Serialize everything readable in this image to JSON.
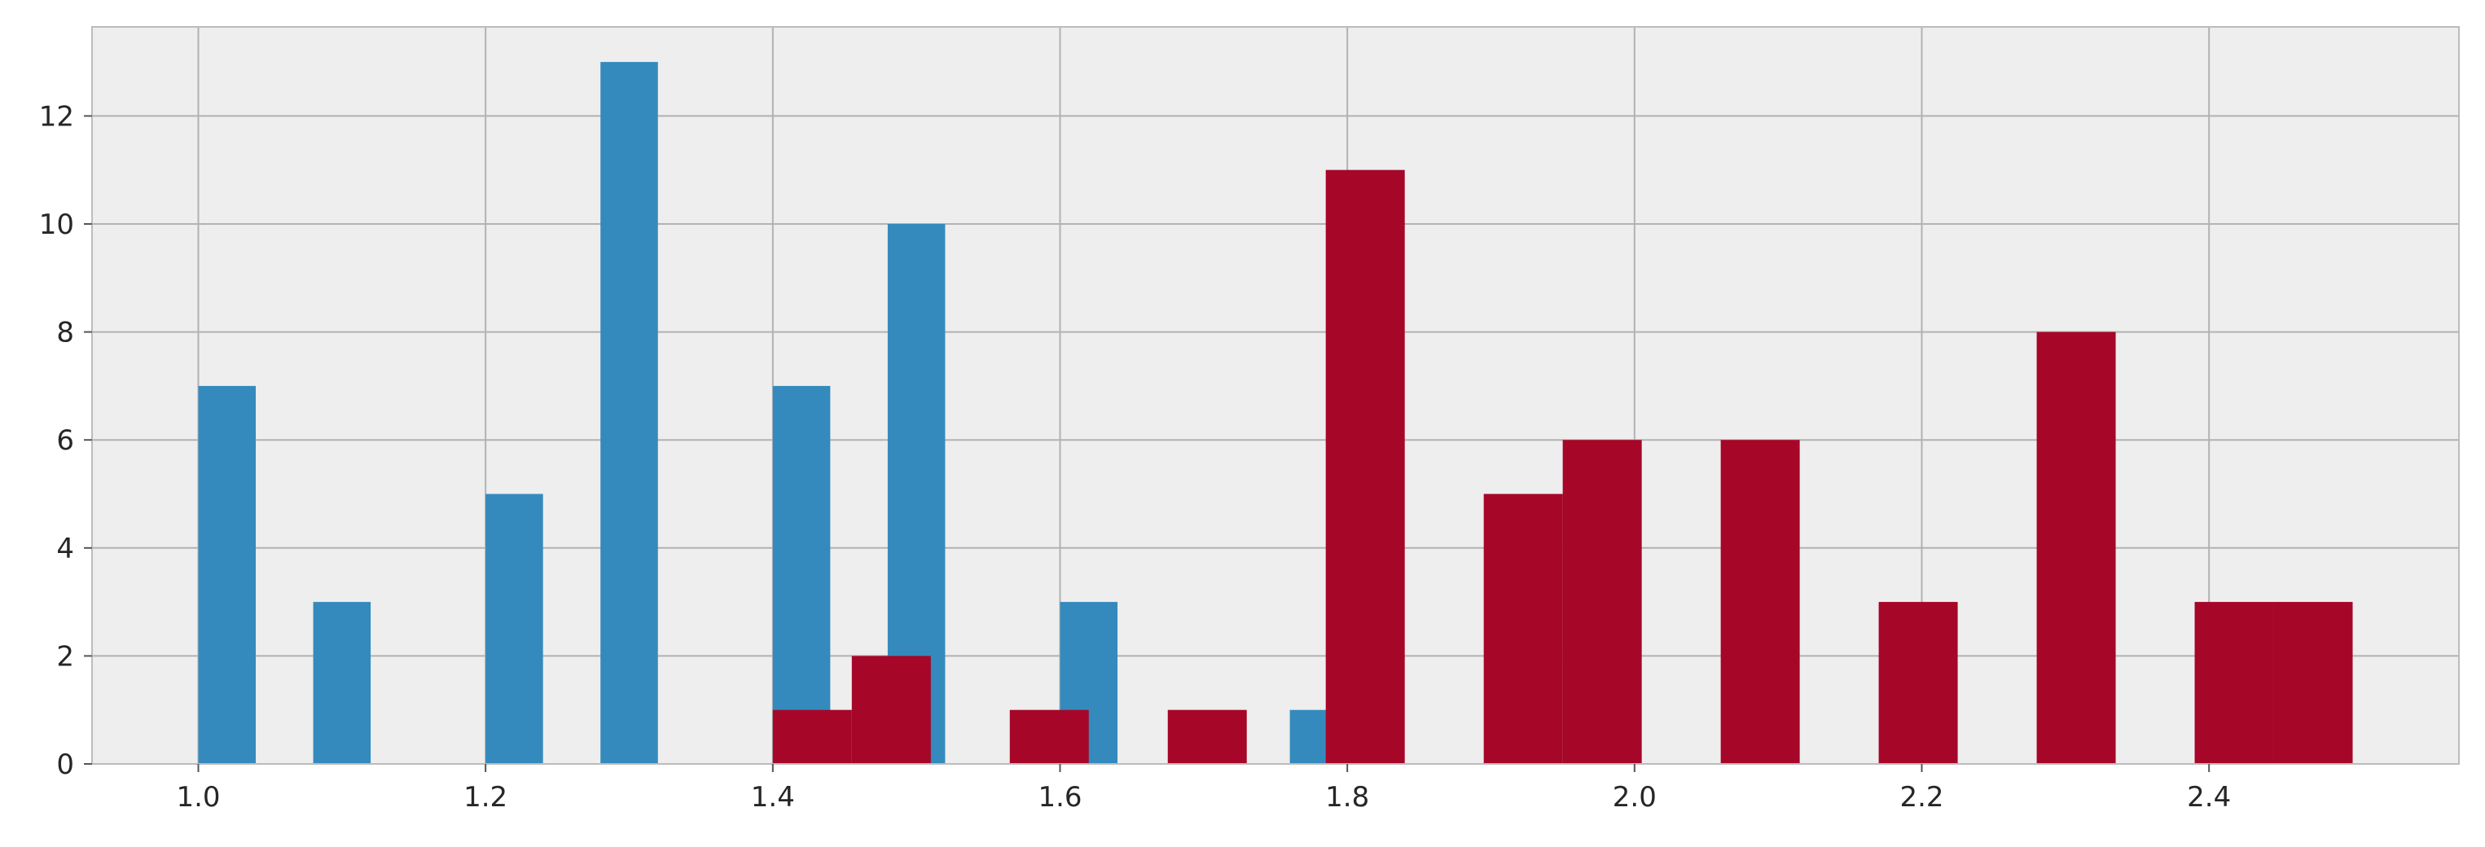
{
  "chart_data": {
    "type": "bar",
    "title": "",
    "xlabel": "",
    "ylabel": "",
    "xlim": [
      0.926,
      2.574
    ],
    "ylim": [
      0,
      13.65
    ],
    "grid": true,
    "x_ticks": [
      1.0,
      1.2,
      1.4,
      1.6,
      1.8,
      2.0,
      2.2,
      2.4
    ],
    "x_tick_labels": [
      "1.0",
      "1.2",
      "1.4",
      "1.6",
      "1.8",
      "2.0",
      "2.2",
      "2.4"
    ],
    "y_ticks": [
      0,
      2,
      4,
      6,
      8,
      10,
      12
    ],
    "y_tick_labels": [
      "0",
      "2",
      "4",
      "6",
      "8",
      "10",
      "12"
    ],
    "series": [
      {
        "color": "#348ABD",
        "bins": [
          {
            "x0": 1.0,
            "x1": 1.04,
            "count": 7
          },
          {
            "x0": 1.08,
            "x1": 1.12,
            "count": 3
          },
          {
            "x0": 1.2,
            "x1": 1.24,
            "count": 5
          },
          {
            "x0": 1.28,
            "x1": 1.32,
            "count": 13
          },
          {
            "x0": 1.4,
            "x1": 1.44,
            "count": 7
          },
          {
            "x0": 1.48,
            "x1": 1.52,
            "count": 10
          },
          {
            "x0": 1.6,
            "x1": 1.64,
            "count": 3
          },
          {
            "x0": 1.76,
            "x1": 1.8,
            "count": 1
          }
        ]
      },
      {
        "color": "#A60628",
        "bins": [
          {
            "x0": 1.4,
            "x1": 1.455,
            "count": 1
          },
          {
            "x0": 1.455,
            "x1": 1.51,
            "count": 2
          },
          {
            "x0": 1.565,
            "x1": 1.62,
            "count": 1
          },
          {
            "x0": 1.675,
            "x1": 1.73,
            "count": 1
          },
          {
            "x0": 1.785,
            "x1": 1.84,
            "count": 11
          },
          {
            "x0": 1.895,
            "x1": 1.95,
            "count": 5
          },
          {
            "x0": 1.95,
            "x1": 2.005,
            "count": 6
          },
          {
            "x0": 2.06,
            "x1": 2.115,
            "count": 6
          },
          {
            "x0": 2.17,
            "x1": 2.225,
            "count": 3
          },
          {
            "x0": 2.28,
            "x1": 2.335,
            "count": 8
          },
          {
            "x0": 2.39,
            "x1": 2.445,
            "count": 3
          },
          {
            "x0": 2.445,
            "x1": 2.5,
            "count": 3
          }
        ]
      }
    ]
  }
}
